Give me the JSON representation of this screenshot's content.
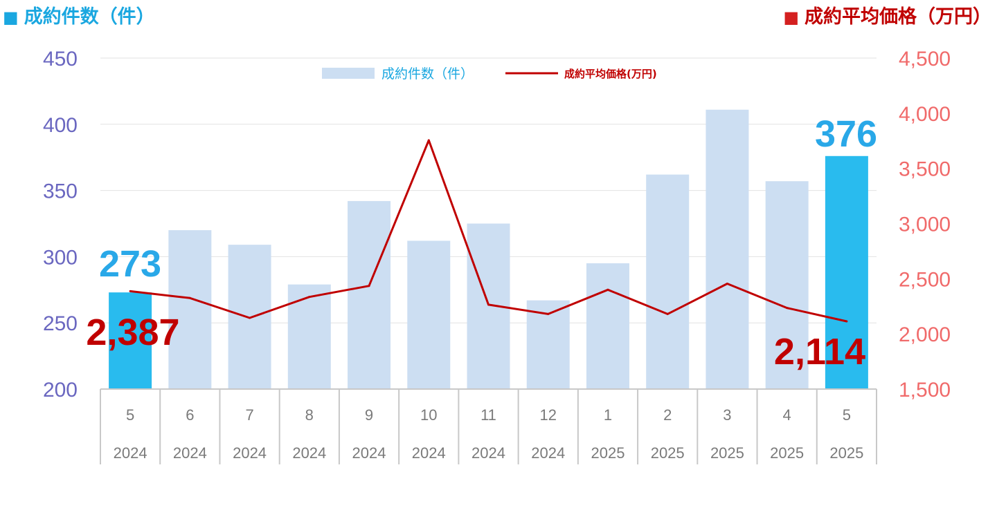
{
  "headers": {
    "left": {
      "marker": "■",
      "text": "成約件数（件）",
      "color": "#1aa7e0"
    },
    "right": {
      "marker": "■",
      "text": "成約平均価格（万円）",
      "color": "#c00000"
    }
  },
  "legend": {
    "bar_label": "成約件数（件）",
    "line_label": "成約平均価格(万円)"
  },
  "chart_data": {
    "type": "bar",
    "categories": [
      "5",
      "6",
      "7",
      "8",
      "9",
      "10",
      "11",
      "12",
      "1",
      "2",
      "3",
      "4",
      "5"
    ],
    "years": [
      "2024",
      "2024",
      "2024",
      "2024",
      "2024",
      "2024",
      "2024",
      "2024",
      "2025",
      "2025",
      "2025",
      "2025",
      "2025"
    ],
    "series": [
      {
        "name": "成約件数（件）",
        "type": "bar",
        "axis": "left",
        "values": [
          273,
          320,
          309,
          279,
          342,
          312,
          325,
          267,
          295,
          362,
          411,
          357,
          376
        ],
        "color": "#ccdef2",
        "highlight_color": "#29bbee",
        "highlight_indices": [
          0,
          12
        ]
      },
      {
        "name": "成約平均価格(万円)",
        "type": "line",
        "axis": "right",
        "values": [
          2387,
          2325,
          2145,
          2335,
          2435,
          3755,
          2265,
          2180,
          2400,
          2180,
          2455,
          2235,
          2114
        ],
        "color": "#c00000"
      }
    ],
    "y_left": {
      "min": 200,
      "max": 450,
      "ticks": [
        "200",
        "250",
        "300",
        "350",
        "400",
        "450"
      ]
    },
    "y_right": {
      "min": 1500,
      "max": 4500,
      "ticks": [
        "1,500",
        "2,000",
        "2,500",
        "3,000",
        "3,500",
        "4,000",
        "4,500"
      ]
    },
    "grid": true,
    "legend_position": "top-center",
    "annotations": [
      {
        "text": "273",
        "series": "bar",
        "index": 0,
        "color": "#29a8e8"
      },
      {
        "text": "376",
        "series": "bar",
        "index": 12,
        "color": "#29a8e8"
      },
      {
        "text": "2,387",
        "series": "line",
        "index": 0,
        "color": "#c00000"
      },
      {
        "text": "2,114",
        "series": "line",
        "index": 12,
        "color": "#c00000"
      }
    ]
  }
}
